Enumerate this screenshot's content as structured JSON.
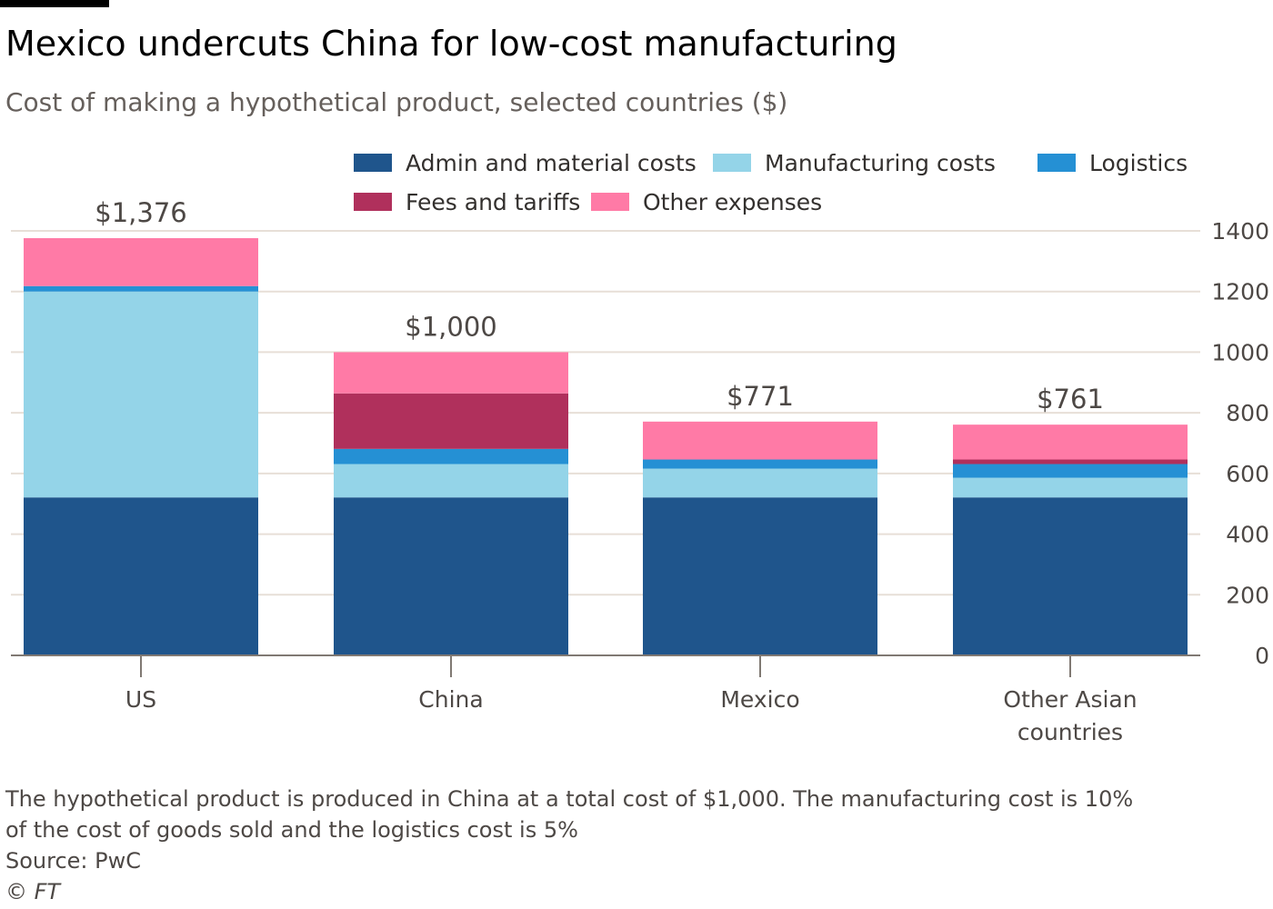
{
  "header": {
    "title": "Mexico undercuts China for low-cost manufacturing",
    "subtitle": "Cost of making a hypothetical product, selected countries ($)"
  },
  "footer": {
    "note_line1": "The hypothetical product is produced in China at a total cost of $1,000. The manufacturing cost is 10%",
    "note_line2": "of the cost of goods sold and the logistics cost is 5%",
    "source": "Source: PwC",
    "credit": "© FT"
  },
  "chart_data": {
    "type": "bar",
    "stacked": true,
    "categories": [
      [
        "US"
      ],
      [
        "China"
      ],
      [
        "Mexico"
      ],
      [
        "Other Asian",
        "countries"
      ]
    ],
    "totals": [
      "$1,376",
      "$1,000",
      "$771",
      "$761"
    ],
    "series": [
      {
        "name": "Admin and material costs",
        "color": "#1f558c",
        "values": [
          521,
          521,
          521,
          521
        ]
      },
      {
        "name": "Manufacturing costs",
        "color": "#94d4e8",
        "values": [
          679,
          110,
          95,
          65
        ]
      },
      {
        "name": "Logistics",
        "color": "#2590d4",
        "values": [
          18,
          50,
          30,
          45
        ]
      },
      {
        "name": "Fees and tariffs",
        "color": "#b0305c",
        "values": [
          0,
          183,
          0,
          15
        ]
      },
      {
        "name": "Other expenses",
        "color": "#ff7aa6",
        "values": [
          158,
          136,
          125,
          115
        ]
      }
    ],
    "yticks": [
      0,
      200,
      400,
      600,
      800,
      1000,
      1200,
      1400
    ],
    "ylim": [
      0,
      1400
    ],
    "grid": true,
    "y_axis_side": "right",
    "legend_position": "top"
  }
}
